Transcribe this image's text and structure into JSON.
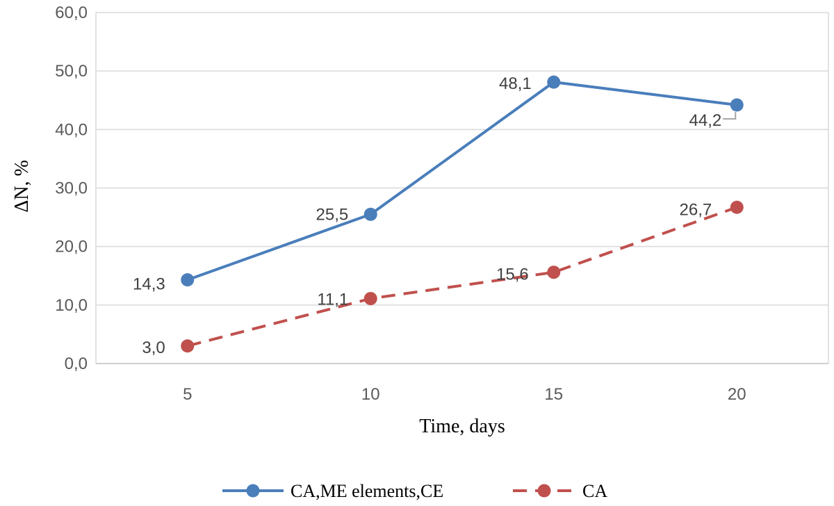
{
  "chart_data": {
    "type": "line",
    "title": "",
    "xlabel": "Time, days",
    "ylabel": "ΔN, %",
    "categories": [
      "5",
      "10",
      "15",
      "20"
    ],
    "ylim": [
      0,
      60
    ],
    "yticks": [
      "0,0",
      "10,0",
      "20,0",
      "30,0",
      "40,0",
      "50,0",
      "60,0"
    ],
    "grid": true,
    "legend_position": "bottom",
    "series": [
      {
        "name": "CA,ME elements,CE",
        "values": [
          14.3,
          25.5,
          48.1,
          44.2
        ],
        "labels": [
          "14,3",
          "25,5",
          "48,1",
          "44,2"
        ],
        "color": "#4A7EBB",
        "dash": "solid"
      },
      {
        "name": "CA",
        "values": [
          3.0,
          11.1,
          15.6,
          26.7
        ],
        "labels": [
          "3,0",
          "11,1",
          "15,6",
          "26,7"
        ],
        "color": "#C0504D",
        "dash": "dashed"
      }
    ]
  }
}
